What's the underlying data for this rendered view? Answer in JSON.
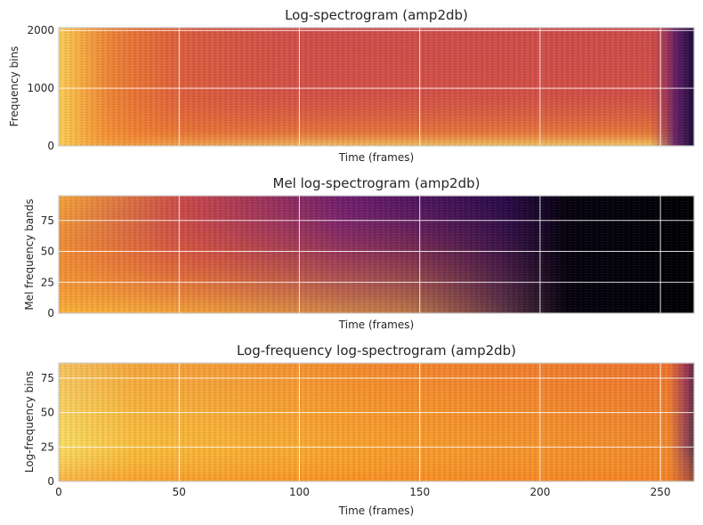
{
  "chart_data": [
    {
      "type": "heatmap",
      "title": "Log-spectrogram (amp2db)",
      "xlabel": "Time (frames)",
      "ylabel": "Frequency bins",
      "xlim": [
        0,
        264
      ],
      "ylim": [
        0,
        2050
      ],
      "x_ticks": [
        0,
        50,
        100,
        150,
        200,
        250
      ],
      "x_tick_labels_shown": false,
      "y_ticks": [
        0,
        1000,
        2000
      ],
      "y_tick_labels": [
        "0",
        "1000",
        "2000"
      ],
      "colormap": "inferno",
      "grid": true,
      "description_of_values": "bright yellow at low bins in early frames, mostly orange-red middle, fading to dark purple in last frames"
    },
    {
      "type": "heatmap",
      "title": "Mel log-spectrogram (amp2db)",
      "xlabel": "Time (frames)",
      "ylabel": "Mel frequency bands",
      "xlim": [
        0,
        264
      ],
      "ylim": [
        0,
        95
      ],
      "x_ticks": [
        0,
        50,
        100,
        150,
        200,
        250
      ],
      "x_tick_labels_shown": false,
      "y_ticks": [
        0,
        25,
        50,
        75
      ],
      "y_tick_labels": [
        "0",
        "25",
        "50",
        "75"
      ],
      "colormap": "inferno",
      "grid": true,
      "description_of_values": "orange/yellow in low bands, decaying to purple and black toward later frames and higher bands"
    },
    {
      "type": "heatmap",
      "title": "Log-frequency log-spectrogram (amp2db)",
      "xlabel": "Time (frames)",
      "ylabel": "Log-frequency bins",
      "xlim": [
        0,
        264
      ],
      "ylim": [
        0,
        86
      ],
      "x_ticks": [
        0,
        50,
        100,
        150,
        200,
        250
      ],
      "x_tick_labels": [
        "0",
        "50",
        "100",
        "150",
        "200",
        "250"
      ],
      "x_tick_labels_shown": true,
      "y_ticks": [
        0,
        25,
        50,
        75
      ],
      "y_tick_labels": [
        "0",
        "25",
        "50",
        "75"
      ],
      "colormap": "inferno",
      "grid": true,
      "description_of_values": "mostly yellow-orange, light yellow early, darkening at right edge"
    }
  ]
}
